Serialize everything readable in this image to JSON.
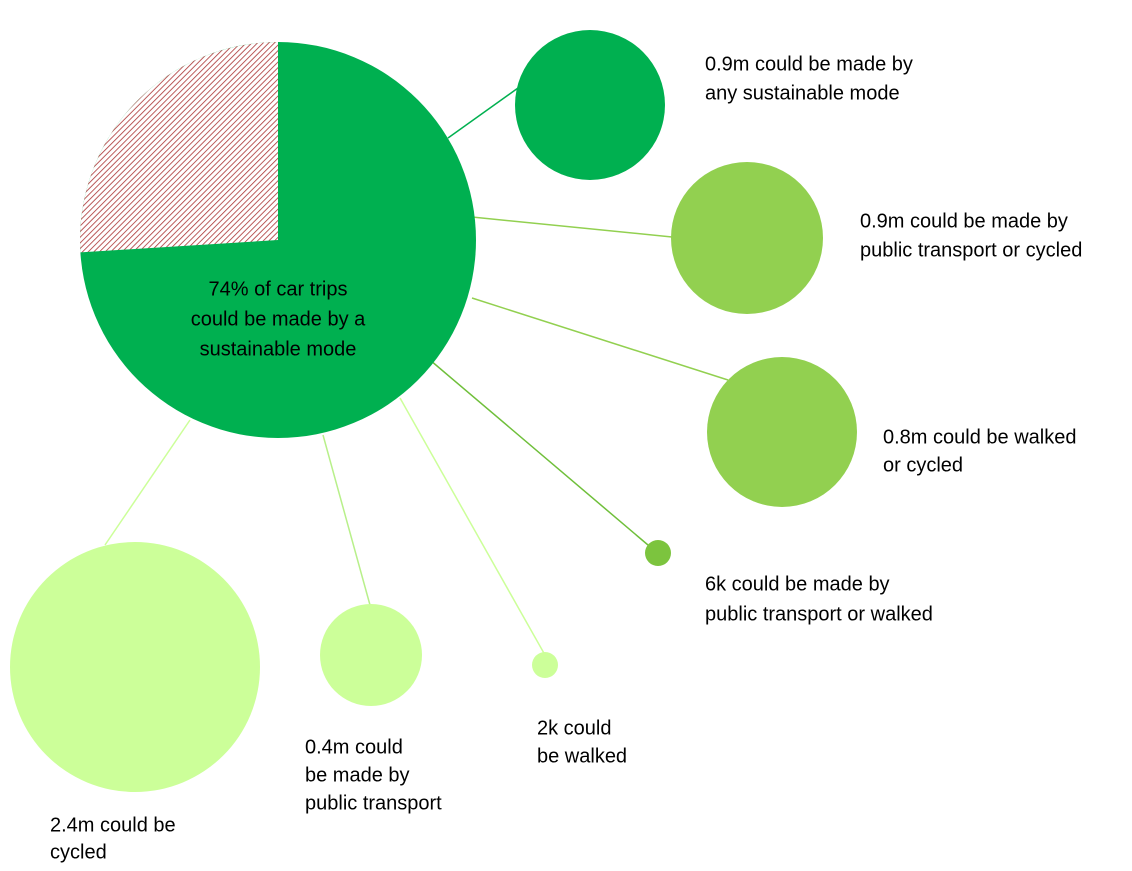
{
  "center": {
    "label": [
      "74% of car trips",
      "could be made by a",
      "sustainable mode"
    ]
  },
  "bubbles": [
    {
      "label": [
        "0.9m could be made by",
        "any sustainable mode"
      ]
    },
    {
      "label": [
        "0.9m could be made by",
        "public transport or cycled"
      ]
    },
    {
      "label": [
        "0.8m could be walked",
        "or cycled"
      ]
    },
    {
      "label": [
        "6k could be made by",
        "public transport or walked"
      ]
    },
    {
      "label": [
        "2k could",
        "be walked"
      ]
    },
    {
      "label": [
        "0.4m could",
        "be made by",
        "public transport"
      ]
    },
    {
      "label": [
        "2.4m could be",
        "cycled"
      ]
    }
  ]
}
